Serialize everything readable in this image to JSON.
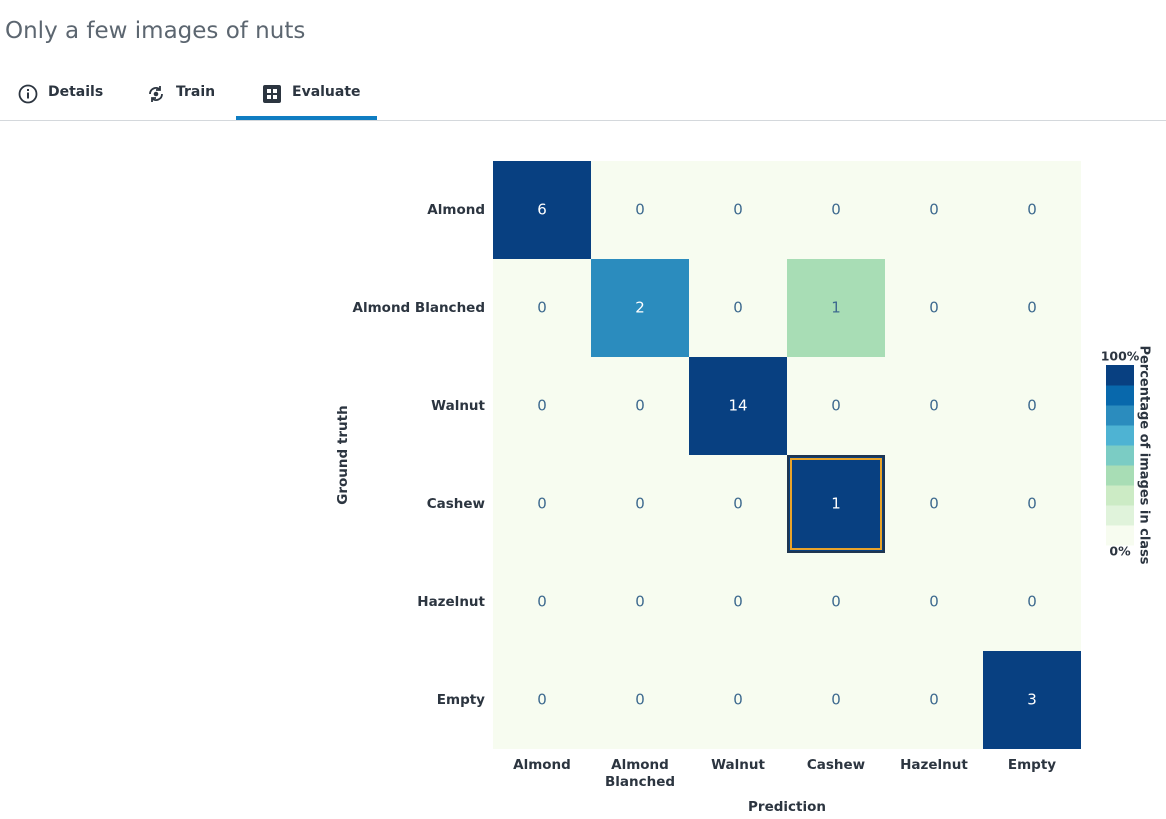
{
  "page": {
    "title": "Only a few images of nuts",
    "tabs": [
      "Details",
      "Train",
      "Evaluate"
    ],
    "active_tab": 2
  },
  "chart_data": {
    "type": "heatmap",
    "x_label": "Prediction",
    "y_label": "Ground truth",
    "x_categories": [
      "Almond",
      "Almond Blanched",
      "Walnut",
      "Cashew",
      "Hazelnut",
      "Empty"
    ],
    "y_categories": [
      "Almond",
      "Almond Blanched",
      "Walnut",
      "Cashew",
      "Hazelnut",
      "Empty"
    ],
    "values": [
      [
        6,
        0,
        0,
        0,
        0,
        0
      ],
      [
        0,
        2,
        0,
        1,
        0,
        0
      ],
      [
        0,
        0,
        14,
        0,
        0,
        0
      ],
      [
        0,
        0,
        0,
        1,
        0,
        0
      ],
      [
        0,
        0,
        0,
        0,
        0,
        0
      ],
      [
        0,
        0,
        0,
        0,
        0,
        3
      ]
    ],
    "colorscale": [
      "#f7fcf0",
      "#e0f3db",
      "#ccebc5",
      "#a8ddb5",
      "#7bccc4",
      "#4eb3d3",
      "#2b8cbe",
      "#0868ac",
      "#084081"
    ],
    "colorbar_title": "Percentage of images in class",
    "colorbar_lim": [
      0,
      100
    ],
    "colorbar_ticks": [
      {
        "value": 100,
        "label": "100%"
      },
      {
        "value": 0,
        "label": "0%"
      }
    ],
    "selected_cell": [
      3,
      3
    ]
  }
}
